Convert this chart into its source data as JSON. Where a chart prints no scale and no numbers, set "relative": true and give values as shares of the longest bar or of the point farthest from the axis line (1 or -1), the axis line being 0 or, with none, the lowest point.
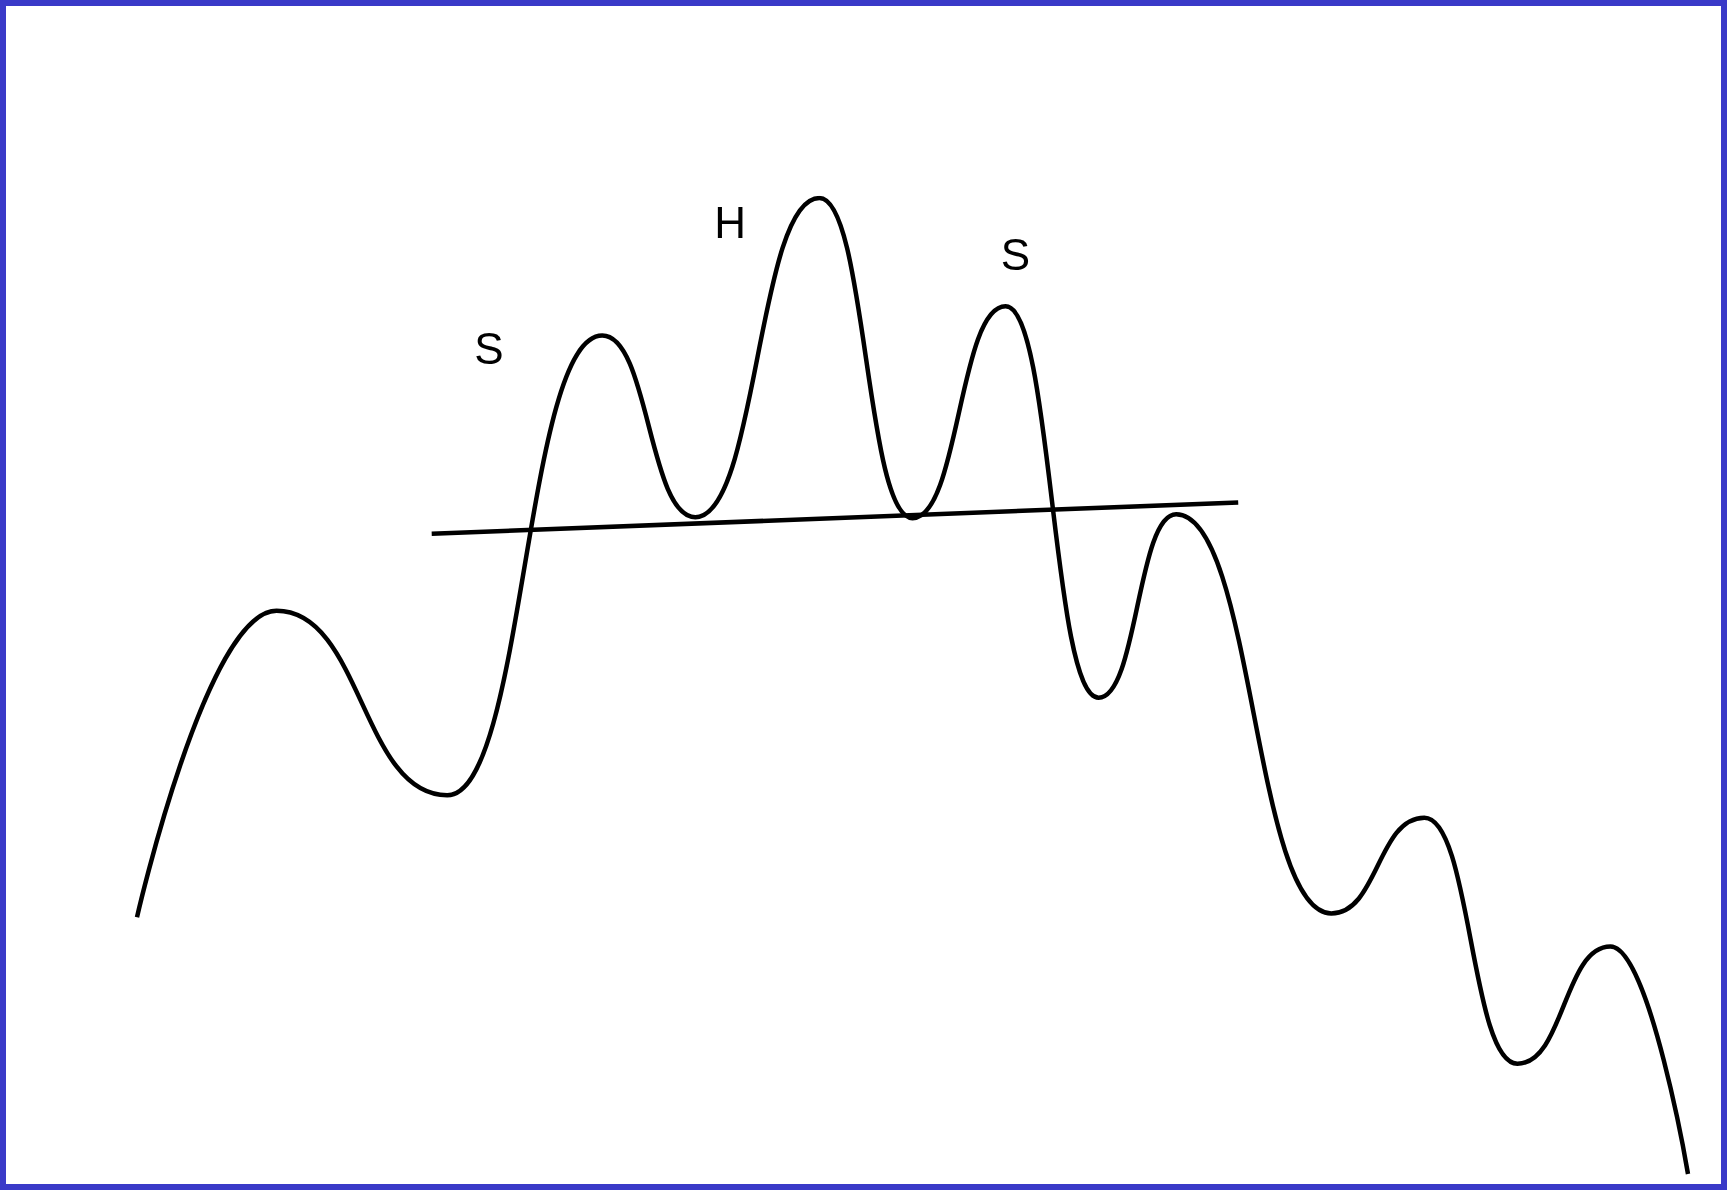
{
  "chart_data": {
    "type": "line",
    "relative": true,
    "marker": "none",
    "line_style": "solid",
    "categories": [
      null,
      null,
      null,
      null,
      null,
      null,
      null,
      null,
      null,
      null,
      null,
      null,
      null,
      null,
      null,
      null,
      null,
      null,
      null,
      null,
      null,
      null,
      null,
      null,
      null,
      null,
      null,
      null,
      null,
      null,
      null,
      null,
      null,
      null,
      null,
      null,
      null,
      null,
      null,
      null,
      null,
      null,
      null,
      null,
      null,
      null,
      null,
      null,
      null,
      null,
      null,
      null,
      null,
      null,
      null,
      null,
      null,
      null,
      null,
      null,
      null,
      null,
      null,
      null,
      null,
      null,
      null,
      null,
      null,
      null,
      null,
      null,
      null,
      null,
      null,
      null,
      null,
      null,
      null,
      null,
      null,
      null,
      null,
      null,
      null,
      null,
      null,
      null,
      null,
      null,
      null,
      null,
      null,
      null,
      null,
      null,
      null,
      null,
      null,
      null,
      null
    ],
    "series": [
      {
        "color": "#000000",
        "values": [
          0.263,
          null,
          null,
          null,
          null,
          null,
          null,
          null,
          null,
          0.577,
          null,
          null,
          null,
          null,
          null,
          null,
          null,
          null,
          null,
          null,
          0.388,
          null,
          null,
          null,
          null,
          null,
          null,
          null,
          null,
          null,
          0.859,
          null,
          null,
          null,
          null,
          null,
          0.673,
          null,
          null,
          null,
          null,
          null,
          null,
          null,
          1,
          null,
          null,
          null,
          null,
          null,
          0.672,
          null,
          null,
          null,
          null,
          null,
          0.889,
          null,
          null,
          null,
          null,
          null,
          0.488,
          null,
          null,
          null,
          null,
          0.676,
          null,
          null,
          null,
          null,
          null,
          null,
          null,
          null,
          null,
          0.267,
          null,
          null,
          null,
          null,
          null,
          0.365,
          null,
          null,
          null,
          null,
          null,
          0.113,
          null,
          null,
          null,
          null,
          null,
          0.233,
          null,
          null,
          null,
          null,
          0
        ]
      },
      {
        "color": "#000000",
        "values": [
          null,
          null,
          null,
          null,
          null,
          null,
          null,
          null,
          null,
          null,
          null,
          null,
          null,
          null,
          null,
          null,
          null,
          null,
          null,
          0.656,
          null,
          null,
          null,
          null,
          null,
          null,
          null,
          null,
          null,
          null,
          null,
          null,
          null,
          null,
          null,
          null,
          null,
          null,
          null,
          null,
          null,
          null,
          null,
          null,
          null,
          null,
          null,
          null,
          null,
          null,
          null,
          null,
          null,
          null,
          null,
          null,
          null,
          null,
          null,
          null,
          null,
          null,
          null,
          null,
          null,
          null,
          null,
          null,
          null,
          null,
          null,
          0.688,
          null,
          null,
          null,
          null,
          null,
          null,
          null,
          null,
          null,
          null,
          null,
          null,
          null,
          null,
          null,
          null,
          null,
          null,
          null,
          null,
          null,
          null,
          null,
          null,
          null,
          null,
          null,
          null,
          null
        ]
      }
    ],
    "annotations": [
      "S",
      "H",
      "S"
    ]
  }
}
